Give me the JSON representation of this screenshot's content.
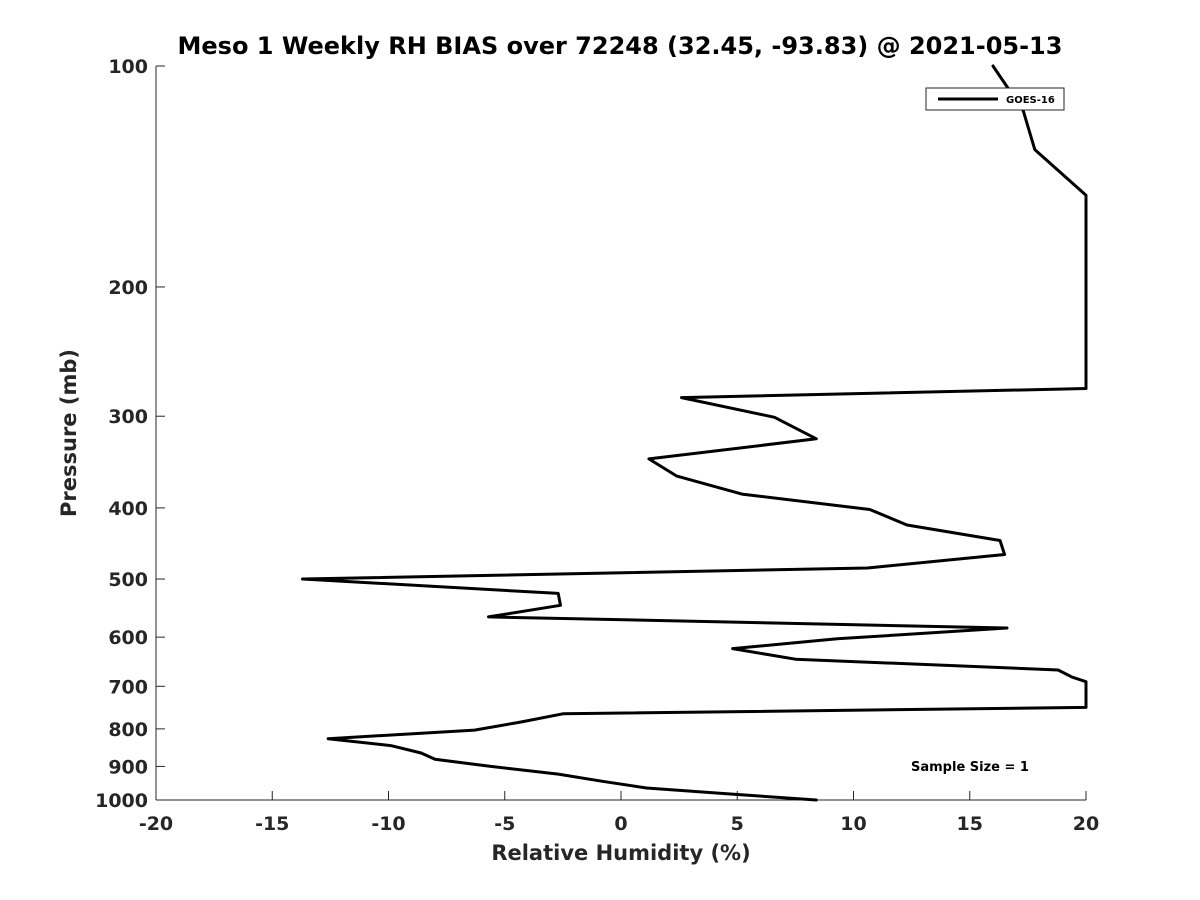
{
  "chart_data": {
    "type": "line",
    "title": "Meso 1 Weekly RH BIAS over 72248 (32.45, -93.83) @ 2021-05-13",
    "xlabel": "Relative Humidity (%)",
    "ylabel": "Pressure (mb)",
    "xlim": [
      -20,
      20
    ],
    "ylim": [
      100,
      1000
    ],
    "yscale": "log",
    "y_reversed": true,
    "xticks": [
      -20,
      -15,
      -10,
      -5,
      0,
      5,
      10,
      15,
      20
    ],
    "yticks": [
      100,
      200,
      300,
      400,
      500,
      600,
      700,
      800,
      900,
      1000
    ],
    "grid": false,
    "legend_placement": "top-right",
    "annotation": "Sample Size = 1",
    "colors": {
      "series": "#000000",
      "axis": "#262626"
    },
    "series": [
      {
        "name": "GOES-16",
        "points": [
          {
            "p": 100,
            "x": 16.0
          },
          {
            "p": 115,
            "x": 17.3
          },
          {
            "p": 130,
            "x": 17.8
          },
          {
            "p": 150,
            "x": 20.0
          },
          {
            "p": 275,
            "x": 20.0
          },
          {
            "p": 283,
            "x": 2.6
          },
          {
            "p": 301,
            "x": 6.6
          },
          {
            "p": 322,
            "x": 8.4
          },
          {
            "p": 343,
            "x": 1.2
          },
          {
            "p": 362,
            "x": 2.4
          },
          {
            "p": 383,
            "x": 5.2
          },
          {
            "p": 402,
            "x": 10.7
          },
          {
            "p": 422,
            "x": 12.3
          },
          {
            "p": 443,
            "x": 16.3
          },
          {
            "p": 463,
            "x": 16.5
          },
          {
            "p": 483,
            "x": 10.6
          },
          {
            "p": 500,
            "x": -13.7
          },
          {
            "p": 523,
            "x": -2.7
          },
          {
            "p": 543,
            "x": -2.6
          },
          {
            "p": 563,
            "x": -5.7
          },
          {
            "p": 583,
            "x": 16.6
          },
          {
            "p": 603,
            "x": 9.3
          },
          {
            "p": 622,
            "x": 4.8
          },
          {
            "p": 643,
            "x": 7.5
          },
          {
            "p": 665,
            "x": 18.8
          },
          {
            "p": 680,
            "x": 19.4
          },
          {
            "p": 690,
            "x": 20.0
          },
          {
            "p": 748,
            "x": 20.0
          },
          {
            "p": 763,
            "x": -2.5
          },
          {
            "p": 783,
            "x": -4.3
          },
          {
            "p": 803,
            "x": -6.3
          },
          {
            "p": 825,
            "x": -12.6
          },
          {
            "p": 843,
            "x": -9.9
          },
          {
            "p": 863,
            "x": -8.6
          },
          {
            "p": 880,
            "x": -8.0
          },
          {
            "p": 900,
            "x": -5.6
          },
          {
            "p": 922,
            "x": -2.7
          },
          {
            "p": 943,
            "x": -0.8
          },
          {
            "p": 963,
            "x": 1.1
          },
          {
            "p": 983,
            "x": 5.0
          },
          {
            "p": 1000,
            "x": 8.4
          }
        ]
      }
    ]
  }
}
